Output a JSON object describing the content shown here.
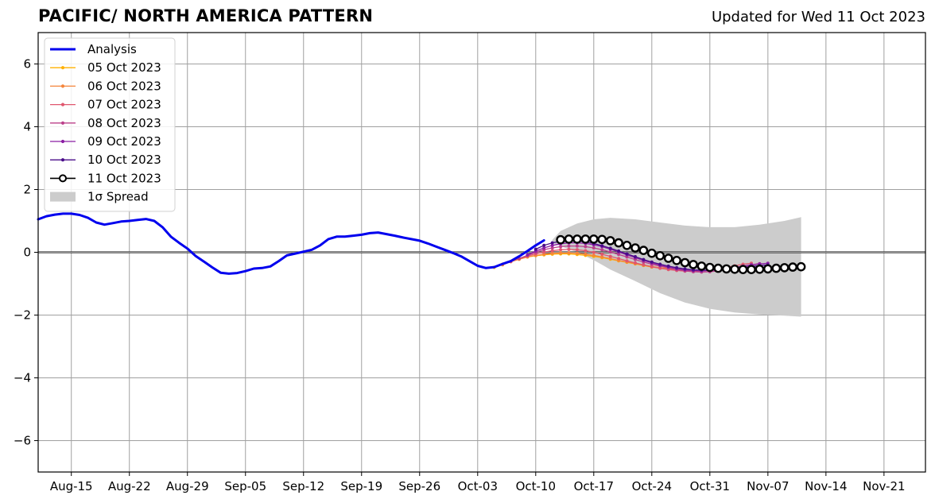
{
  "chart_data": {
    "type": "line",
    "title": "PACIFIC/ NORTH AMERICA PATTERN",
    "subtitle": "Updated for Wed 11 Oct 2023",
    "xlabel": "",
    "ylabel": "",
    "x_start": "2023-08-11",
    "x_end": "2023-11-26",
    "ylim": [
      -7,
      7
    ],
    "yticks": [
      -6,
      -4,
      -2,
      0,
      2,
      4,
      6
    ],
    "ytick_labels": [
      "−6",
      "−4",
      "−2",
      "0",
      "2",
      "4",
      "6"
    ],
    "xticks": [
      "2023-08-15",
      "2023-08-22",
      "2023-08-29",
      "2023-09-05",
      "2023-09-12",
      "2023-09-19",
      "2023-09-26",
      "2023-10-03",
      "2023-10-10",
      "2023-10-17",
      "2023-10-24",
      "2023-10-31",
      "2023-11-07",
      "2023-11-14",
      "2023-11-21"
    ],
    "xtick_labels": [
      "Aug-15",
      "Aug-22",
      "Aug-29",
      "Sep-05",
      "Sep-12",
      "Sep-19",
      "Sep-26",
      "Oct-03",
      "Oct-10",
      "Oct-17",
      "Oct-24",
      "Oct-31",
      "Nov-07",
      "Nov-14",
      "Nov-21"
    ],
    "grid": true,
    "legend_position": "top-left",
    "analysis": {
      "name": "Analysis",
      "color": "#0000ee",
      "points": [
        [
          "2023-08-11",
          1.05
        ],
        [
          "2023-08-12",
          1.15
        ],
        [
          "2023-08-13",
          1.2
        ],
        [
          "2023-08-14",
          1.23
        ],
        [
          "2023-08-15",
          1.23
        ],
        [
          "2023-08-16",
          1.19
        ],
        [
          "2023-08-17",
          1.1
        ],
        [
          "2023-08-18",
          0.95
        ],
        [
          "2023-08-19",
          0.88
        ],
        [
          "2023-08-20",
          0.93
        ],
        [
          "2023-08-21",
          0.98
        ],
        [
          "2023-08-22",
          1.0
        ],
        [
          "2023-08-23",
          1.03
        ],
        [
          "2023-08-24",
          1.06
        ],
        [
          "2023-08-25",
          1.0
        ],
        [
          "2023-08-26",
          0.8
        ],
        [
          "2023-08-27",
          0.5
        ],
        [
          "2023-08-28",
          0.3
        ],
        [
          "2023-08-29",
          0.12
        ],
        [
          "2023-08-30",
          -0.12
        ],
        [
          "2023-08-31",
          -0.3
        ],
        [
          "2023-09-01",
          -0.48
        ],
        [
          "2023-09-02",
          -0.65
        ],
        [
          "2023-09-03",
          -0.68
        ],
        [
          "2023-09-04",
          -0.66
        ],
        [
          "2023-09-05",
          -0.6
        ],
        [
          "2023-09-06",
          -0.52
        ],
        [
          "2023-09-07",
          -0.5
        ],
        [
          "2023-09-08",
          -0.45
        ],
        [
          "2023-09-09",
          -0.28
        ],
        [
          "2023-09-10",
          -0.1
        ],
        [
          "2023-09-11",
          -0.04
        ],
        [
          "2023-09-12",
          0.02
        ],
        [
          "2023-09-13",
          0.08
        ],
        [
          "2023-09-14",
          0.22
        ],
        [
          "2023-09-15",
          0.42
        ],
        [
          "2023-09-16",
          0.5
        ],
        [
          "2023-09-17",
          0.5
        ],
        [
          "2023-09-18",
          0.53
        ],
        [
          "2023-09-19",
          0.56
        ],
        [
          "2023-09-20",
          0.61
        ],
        [
          "2023-09-21",
          0.63
        ],
        [
          "2023-09-22",
          0.58
        ],
        [
          "2023-09-23",
          0.53
        ],
        [
          "2023-09-24",
          0.47
        ],
        [
          "2023-09-25",
          0.42
        ],
        [
          "2023-09-26",
          0.37
        ],
        [
          "2023-09-27",
          0.28
        ],
        [
          "2023-09-28",
          0.18
        ],
        [
          "2023-09-29",
          0.08
        ],
        [
          "2023-09-30",
          -0.02
        ],
        [
          "2023-10-01",
          -0.13
        ],
        [
          "2023-10-02",
          -0.28
        ],
        [
          "2023-10-03",
          -0.43
        ],
        [
          "2023-10-04",
          -0.5
        ],
        [
          "2023-10-05",
          -0.47
        ],
        [
          "2023-10-06",
          -0.37
        ],
        [
          "2023-10-07",
          -0.28
        ],
        [
          "2023-10-08",
          -0.13
        ],
        [
          "2023-10-09",
          0.04
        ],
        [
          "2023-10-10",
          0.22
        ],
        [
          "2023-10-11",
          0.38
        ]
      ]
    },
    "forecasts": [
      {
        "name": "05 Oct 2023",
        "color": "#ffb000",
        "start": "2023-10-05",
        "values": [
          -0.48,
          -0.38,
          -0.3,
          -0.22,
          -0.15,
          -0.11,
          -0.08,
          -0.06,
          -0.05,
          -0.05,
          -0.07,
          -0.1,
          -0.13,
          -0.17,
          -0.22,
          -0.27,
          -0.32,
          -0.37,
          -0.42,
          -0.47,
          -0.5,
          -0.53,
          -0.55,
          -0.57,
          -0.58,
          -0.59
        ]
      },
      {
        "name": "06 Oct 2023",
        "color": "#f5853a",
        "start": "2023-10-06",
        "values": [
          -0.4,
          -0.3,
          -0.22,
          -0.15,
          -0.1,
          -0.06,
          -0.03,
          -0.02,
          -0.02,
          -0.03,
          -0.06,
          -0.1,
          -0.15,
          -0.2,
          -0.26,
          -0.31,
          -0.36,
          -0.41,
          -0.45,
          -0.49,
          -0.52,
          -0.55,
          -0.57,
          -0.58,
          -0.59
        ]
      },
      {
        "name": "07 Oct 2023",
        "color": "#e0576e",
        "start": "2023-10-07",
        "values": [
          -0.3,
          -0.2,
          -0.12,
          -0.05,
          0.01,
          0.05,
          0.08,
          0.09,
          0.08,
          0.05,
          0.0,
          -0.06,
          -0.13,
          -0.2,
          -0.27,
          -0.34,
          -0.4,
          -0.46,
          -0.51,
          -0.55,
          -0.58,
          -0.6,
          -0.61,
          -0.6,
          -0.57,
          -0.53,
          -0.48,
          -0.43,
          -0.38,
          -0.35
        ]
      },
      {
        "name": "08 Oct 2023",
        "color": "#bb3f8a",
        "start": "2023-10-08",
        "values": [
          -0.2,
          -0.1,
          0.0,
          0.08,
          0.14,
          0.18,
          0.2,
          0.2,
          0.18,
          0.14,
          0.08,
          0.01,
          -0.07,
          -0.15,
          -0.23,
          -0.31,
          -0.38,
          -0.44,
          -0.5,
          -0.55,
          -0.59,
          -0.62,
          -0.63,
          -0.62,
          -0.59,
          -0.55,
          -0.5,
          -0.45,
          -0.4,
          -0.36
        ]
      },
      {
        "name": "09 Oct 2023",
        "color": "#8b1ea3",
        "start": "2023-10-09",
        "values": [
          -0.08,
          0.04,
          0.14,
          0.22,
          0.27,
          0.3,
          0.3,
          0.28,
          0.24,
          0.18,
          0.1,
          0.01,
          -0.08,
          -0.17,
          -0.26,
          -0.34,
          -0.41,
          -0.47,
          -0.52,
          -0.56,
          -0.58,
          -0.59,
          -0.58,
          -0.56,
          -0.52,
          -0.48,
          -0.44,
          -0.4,
          -0.37,
          -0.35
        ]
      },
      {
        "name": "10 Oct 2023",
        "color": "#4a0c8a",
        "start": "2023-10-10",
        "values": [
          0.1,
          0.22,
          0.3,
          0.35,
          0.37,
          0.36,
          0.33,
          0.28,
          0.21,
          0.13,
          0.04,
          -0.05,
          -0.14,
          -0.23,
          -0.31,
          -0.38,
          -0.44,
          -0.49,
          -0.53,
          -0.56,
          -0.57,
          -0.57,
          -0.56,
          -0.54,
          -0.51,
          -0.48,
          -0.45,
          -0.42,
          -0.4
        ]
      },
      {
        "name": "11 Oct 2023",
        "color": "#000000",
        "start": "2023-10-13",
        "values": [
          0.4,
          0.42,
          0.42,
          0.42,
          0.42,
          0.41,
          0.37,
          0.3,
          0.22,
          0.14,
          0.06,
          -0.03,
          -0.11,
          -0.19,
          -0.26,
          -0.33,
          -0.39,
          -0.44,
          -0.48,
          -0.51,
          -0.53,
          -0.54,
          -0.55,
          -0.55,
          -0.54,
          -0.53,
          -0.51,
          -0.49,
          -0.47,
          -0.46
        ]
      }
    ],
    "spread": {
      "name": "1σ Spread",
      "color": "#cccccc",
      "points": [
        [
          "2023-10-12",
          0.4,
          0.3
        ],
        [
          "2023-10-13",
          0.68,
          0.2
        ],
        [
          "2023-10-15",
          0.92,
          0.0
        ],
        [
          "2023-10-17",
          1.05,
          -0.25
        ],
        [
          "2023-10-19",
          1.1,
          -0.55
        ],
        [
          "2023-10-22",
          1.05,
          -0.92
        ],
        [
          "2023-10-25",
          0.95,
          -1.3
        ],
        [
          "2023-10-28",
          0.85,
          -1.6
        ],
        [
          "2023-10-31",
          0.8,
          -1.8
        ],
        [
          "2023-11-03",
          0.8,
          -1.92
        ],
        [
          "2023-11-06",
          0.88,
          -1.98
        ],
        [
          "2023-11-09",
          1.0,
          -2.02
        ],
        [
          "2023-11-11",
          1.12,
          -2.05
        ]
      ]
    }
  }
}
